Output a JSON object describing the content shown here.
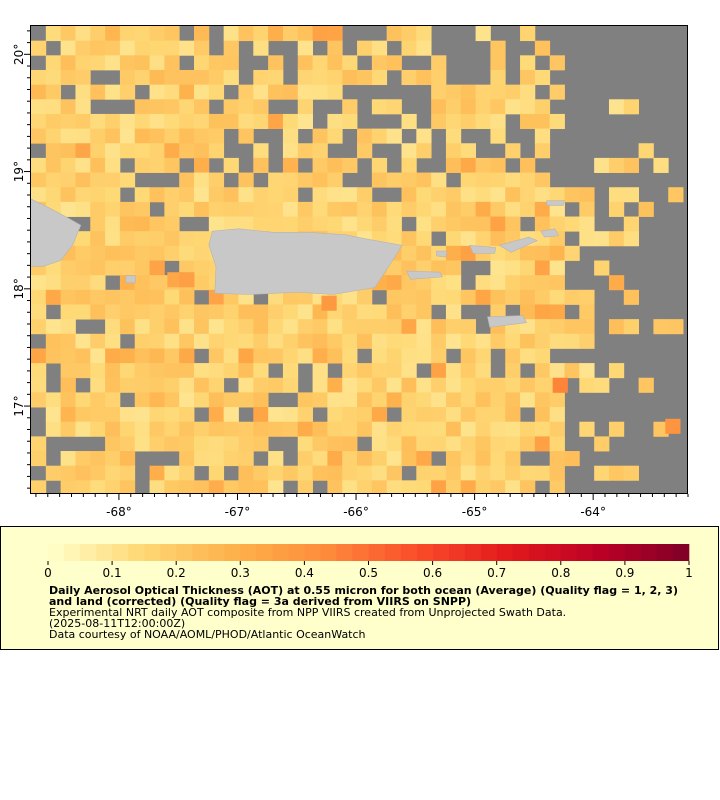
{
  "map": {
    "lon_range": [
      -68.75,
      -63.2
    ],
    "lat_range": [
      16.25,
      20.25
    ],
    "cell_size_deg": 0.125,
    "land_color": "#c8c8c8",
    "nodata_color": "#808080",
    "x_ticks": [
      {
        "value": -68,
        "label": "-68°"
      },
      {
        "value": -67,
        "label": "-67°"
      },
      {
        "value": -66,
        "label": "-66°"
      },
      {
        "value": -65,
        "label": "-65°"
      },
      {
        "value": -64,
        "label": "-64°"
      }
    ],
    "y_ticks": [
      {
        "value": 20,
        "label": "20°"
      },
      {
        "value": 19,
        "label": "19°"
      },
      {
        "value": 18,
        "label": "18°"
      },
      {
        "value": 17,
        "label": "17°"
      }
    ],
    "islands": [
      "Puerto Rico",
      "Hispaniola (east tip)",
      "Vieques",
      "Culebra",
      "Virgin Islands",
      "St. Croix"
    ]
  },
  "colorbar": {
    "min": 0,
    "max": 1,
    "tick_labels": [
      "0",
      "0.1",
      "0.2",
      "0.3",
      "0.4",
      "0.5",
      "0.6",
      "0.7",
      "0.8",
      "0.9",
      "1"
    ],
    "colors": [
      "#ffffcc",
      "#fed976",
      "#feb24c",
      "#fd8d3c",
      "#fc4e2a",
      "#e31a1c",
      "#bd0026",
      "#800026"
    ]
  },
  "legend": {
    "title": "Daily Aerosol Optical Thickness (AOT) at 0.55 micron for both ocean (Average) (Quality flag = 1, 2, 3) and land (corrected) (Quality flag = 3a derived from VIIRS on SNPP)",
    "line1": "Experimental NRT daily AOT composite from NPP VIIRS created from Unprojected Swath Data.",
    "line2": "(2025-08-11T12:00:00Z)",
    "line3": "Data courtesy of NOAA/AOML/PHOD/Atlantic OceanWatch"
  }
}
